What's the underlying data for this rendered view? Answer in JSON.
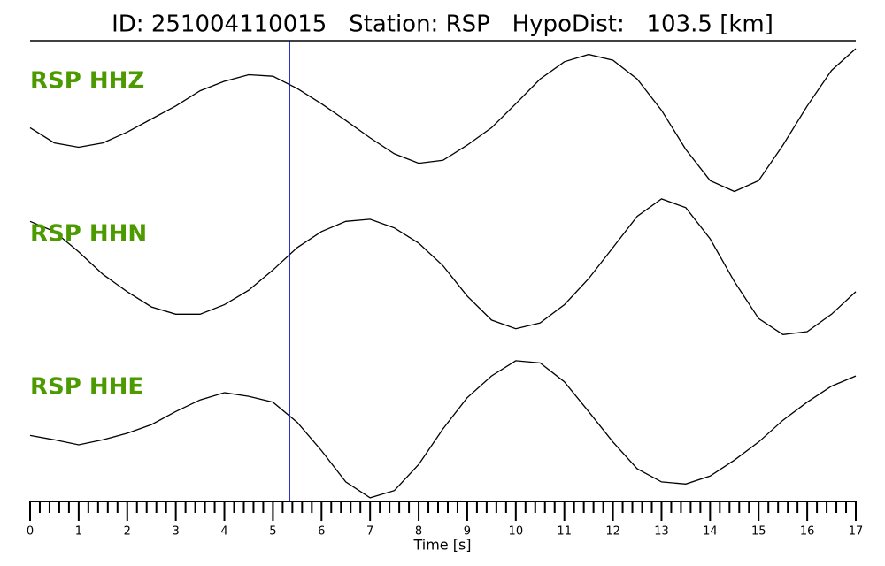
{
  "chart_data": {
    "type": "line",
    "title": "ID: 251004110015   Station: RSP   HypoDist:   103.5 [km]",
    "xlabel": "Time [s]",
    "x": [
      0,
      0.5,
      1,
      1.5,
      2,
      2.5,
      3,
      3.5,
      4,
      4.5,
      5,
      5.5,
      6,
      6.5,
      7,
      7.5,
      8,
      8.5,
      9,
      9.5,
      10,
      10.5,
      11,
      11.5,
      12,
      12.5,
      13,
      13.5,
      14,
      14.5,
      15,
      15.5,
      16,
      16.5,
      17
    ],
    "series": [
      {
        "name": "RSP HHZ",
        "color": "#000000",
        "values": [
          -0.09,
          -0.3,
          -0.36,
          -0.3,
          -0.15,
          0.03,
          0.21,
          0.42,
          0.55,
          0.64,
          0.62,
          0.45,
          0.24,
          0.01,
          -0.23,
          -0.45,
          -0.58,
          -0.54,
          -0.33,
          -0.09,
          0.24,
          0.58,
          0.82,
          0.92,
          0.84,
          0.58,
          0.15,
          -0.39,
          -0.82,
          -0.97,
          -0.82,
          -0.33,
          0.21,
          0.7,
          1.0
        ]
      },
      {
        "name": "RSP HHN",
        "color": "#000000",
        "values": [
          0.63,
          0.49,
          0.21,
          -0.1,
          -0.34,
          -0.55,
          -0.65,
          -0.65,
          -0.52,
          -0.32,
          -0.04,
          0.27,
          0.49,
          0.63,
          0.66,
          0.54,
          0.33,
          0.02,
          -0.4,
          -0.73,
          -0.85,
          -0.77,
          -0.52,
          -0.16,
          0.27,
          0.7,
          0.94,
          0.82,
          0.39,
          -0.2,
          -0.71,
          -0.93,
          -0.89,
          -0.65,
          -0.34
        ]
      },
      {
        "name": "RSP HHE",
        "color": "#000000",
        "values": [
          -0.09,
          -0.15,
          -0.22,
          -0.15,
          -0.06,
          0.06,
          0.24,
          0.4,
          0.5,
          0.45,
          0.37,
          0.09,
          -0.3,
          -0.73,
          -0.95,
          -0.85,
          -0.49,
          0.0,
          0.43,
          0.73,
          0.94,
          0.91,
          0.65,
          0.24,
          -0.18,
          -0.55,
          -0.73,
          -0.76,
          -0.65,
          -0.43,
          -0.18,
          0.12,
          0.37,
          0.59,
          0.73
        ]
      }
    ],
    "label_color": "#4c9a00",
    "ylim": [
      -1,
      1
    ],
    "xlim": [
      0,
      17
    ],
    "xticks": [
      0,
      1,
      2,
      3,
      4,
      5,
      6,
      7,
      8,
      9,
      10,
      11,
      12,
      13,
      14,
      15,
      16,
      17
    ],
    "minor_xticks": [
      0.2,
      0.4,
      0.6,
      0.8,
      1.2,
      1.4,
      1.6,
      1.8,
      2.2,
      2.4,
      2.6,
      2.8,
      3.2,
      3.4,
      3.6,
      3.8,
      4.2,
      4.4,
      4.6,
      4.8,
      5.2,
      5.4,
      5.6,
      5.8,
      6.2,
      6.4,
      6.6,
      6.8,
      7.2,
      7.4,
      7.6,
      7.8,
      8.2,
      8.4,
      8.6,
      8.8,
      9.2,
      9.4,
      9.6,
      9.8,
      10.2,
      10.4,
      10.6,
      10.8,
      11.2,
      11.4,
      11.6,
      11.8,
      12.2,
      12.4,
      12.6,
      12.8,
      13.2,
      13.4,
      13.6,
      13.8,
      14.2,
      14.4,
      14.6,
      14.8,
      15.2,
      15.4,
      15.6,
      15.8,
      16.2,
      16.4,
      16.6,
      16.8
    ],
    "marker_line": {
      "x": 5.34,
      "color": "#0000cc"
    }
  }
}
